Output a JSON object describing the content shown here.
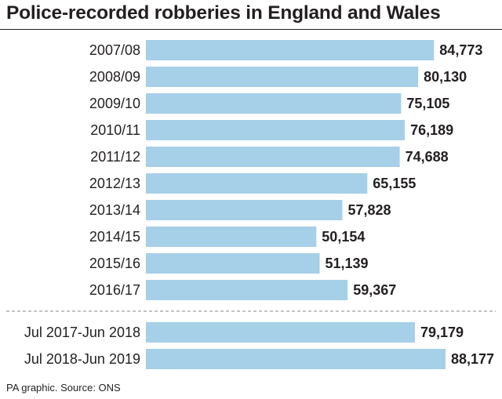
{
  "chart_data": {
    "type": "bar",
    "orientation": "horizontal",
    "title": "Police-recorded robberies in England and Wales",
    "categories": [
      "2007/08",
      "2008/09",
      "2009/10",
      "2010/11",
      "2011/12",
      "2012/13",
      "2013/14",
      "2014/15",
      "2015/16",
      "2016/17",
      "Jul 2017-Jun 2018",
      "Jul 2018-Jun 2019"
    ],
    "values": [
      84773,
      80130,
      75105,
      76189,
      74688,
      65155,
      57828,
      50154,
      51139,
      59367,
      79179,
      88177
    ],
    "value_labels": [
      "84,773",
      "80,130",
      "75,105",
      "76,189",
      "74,688",
      "65,155",
      "57,828",
      "50,154",
      "51,139",
      "59,367",
      "79,179",
      "88,177"
    ],
    "bar_color": "#a6cfe8",
    "divider_after_index": 9,
    "xlim": [
      0,
      88177
    ],
    "grid": false,
    "xlabel": "",
    "ylabel": ""
  },
  "footer": {
    "source": "PA graphic. Source: ONS"
  }
}
